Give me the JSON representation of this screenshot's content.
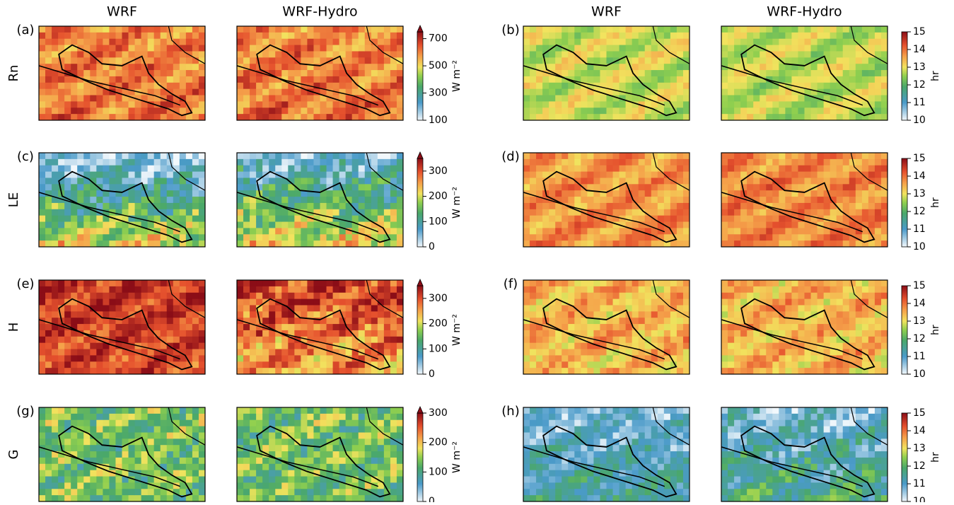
{
  "column_headers": [
    "WRF",
    "WRF-Hydro",
    "WRF",
    "WRF-Hydro"
  ],
  "rows": [
    {
      "label": "Rn",
      "left": {
        "letter": "(a)",
        "colorbar": {
          "label": "W m⁻²",
          "lim": [
            100,
            750
          ],
          "ticks": [
            100,
            300,
            500,
            700
          ],
          "extend": "max"
        }
      },
      "right": {
        "letter": "(b)",
        "colorbar": {
          "label": "hr",
          "lim": [
            10,
            15
          ],
          "ticks": [
            10,
            11,
            12,
            13,
            14,
            15
          ]
        }
      }
    },
    {
      "label": "LE",
      "left": {
        "letter": "(c)",
        "colorbar": {
          "label": "W m⁻²",
          "lim": [
            0,
            350
          ],
          "ticks": [
            0,
            100,
            200,
            300
          ],
          "extend": "max"
        }
      },
      "right": {
        "letter": "(d)",
        "colorbar": {
          "label": "hr",
          "lim": [
            10,
            15
          ],
          "ticks": [
            10,
            11,
            12,
            13,
            14,
            15
          ]
        }
      }
    },
    {
      "label": "H",
      "left": {
        "letter": "(e)",
        "colorbar": {
          "label": "W m⁻²",
          "lim": [
            0,
            350
          ],
          "ticks": [
            0,
            100,
            200,
            300
          ],
          "extend": "max"
        }
      },
      "right": {
        "letter": "(f)",
        "colorbar": {
          "label": "hr",
          "lim": [
            10,
            15
          ],
          "ticks": [
            10,
            11,
            12,
            13,
            14,
            15
          ]
        }
      }
    },
    {
      "label": "G",
      "left": {
        "letter": "(g)",
        "colorbar": {
          "label": "W m⁻²",
          "lim": [
            0,
            300
          ],
          "ticks": [
            0,
            100,
            200,
            300
          ],
          "extend": "max"
        }
      },
      "right": {
        "letter": "(h)",
        "colorbar": {
          "label": "hr",
          "lim": [
            10,
            15
          ],
          "ticks": [
            10,
            11,
            12,
            13,
            14,
            15
          ]
        }
      }
    }
  ]
}
